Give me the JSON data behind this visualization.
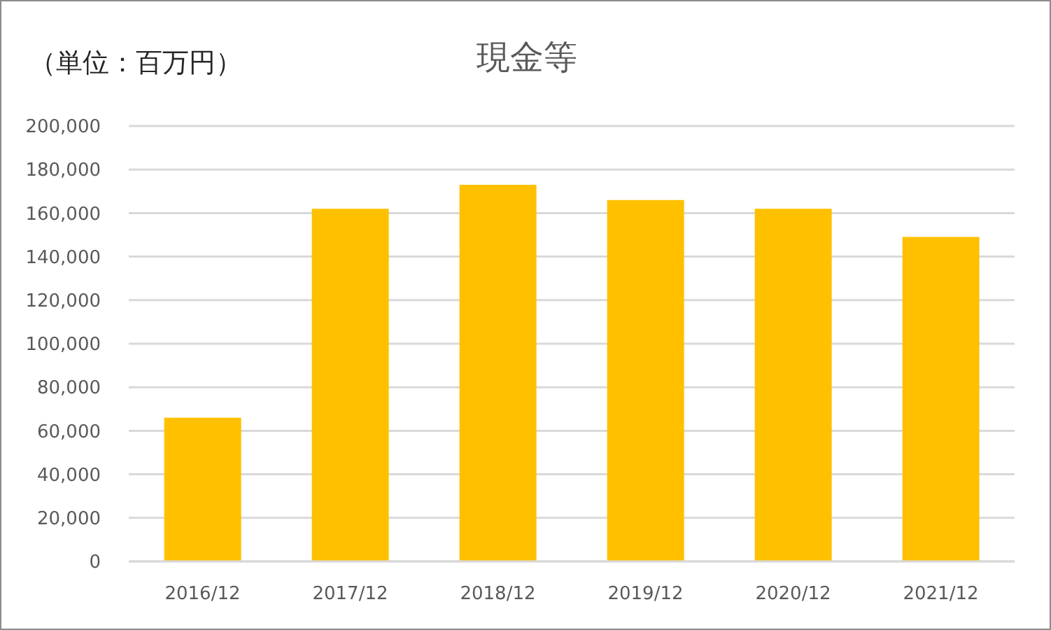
{
  "chart_data": {
    "type": "bar",
    "title": "現金等",
    "ylabel": "（単位：百万円）",
    "categories": [
      "2016/12",
      "2017/12",
      "2018/12",
      "2019/12",
      "2020/12",
      "2021/12"
    ],
    "values": [
      66000,
      162000,
      173000,
      166000,
      162000,
      149000
    ],
    "color": "#ffc000",
    "ylim": [
      0,
      200000
    ],
    "yticks": [
      0,
      {
        "value": 20000,
        "label": "20,000"
      },
      {
        "value": 40000,
        "label": "40,000"
      },
      {
        "value": 60000,
        "label": "60,000"
      },
      {
        "value": 80000,
        "label": "80,000"
      },
      {
        "value": 100000,
        "label": "100,000"
      },
      {
        "value": 120000,
        "label": "120,000"
      },
      {
        "value": 140000,
        "label": "140,000"
      },
      {
        "value": 160000,
        "label": "160,000"
      },
      {
        "value": 180000,
        "label": "180,000"
      },
      {
        "value": 200000,
        "label": "200,000"
      }
    ],
    "grid": "y"
  }
}
